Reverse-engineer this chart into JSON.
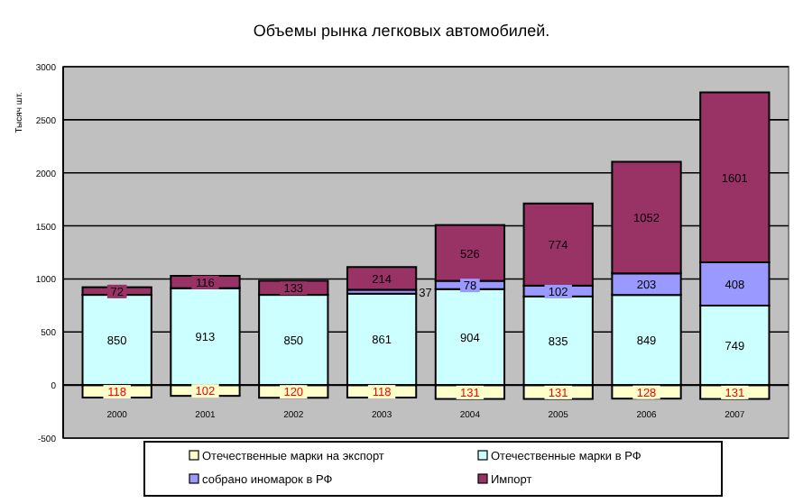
{
  "chart_data": {
    "type": "bar",
    "stacked": true,
    "title": "Объемы рынка легковых автомобилей.",
    "ylabel": "Тысяч шт.",
    "categories": [
      "2000",
      "2001",
      "2002",
      "2003",
      "2004",
      "2005",
      "2006",
      "2007"
    ],
    "series": [
      {
        "name": "Отечественные марки на экспорт",
        "color": "#ffffcc",
        "values": [
          118,
          102,
          120,
          118,
          131,
          131,
          128,
          131
        ],
        "base": [
          -118,
          -102,
          -120,
          -118,
          -131,
          -131,
          -128,
          -131
        ]
      },
      {
        "name": "Отечественные марки в РФ",
        "color": "#ccffff",
        "values": [
          850,
          913,
          850,
          861,
          904,
          835,
          849,
          749
        ]
      },
      {
        "name": "собрано иномарок в РФ",
        "color": "#9999ff",
        "values": [
          null,
          null,
          null,
          37,
          78,
          102,
          203,
          408
        ]
      },
      {
        "name": "Импорт",
        "color": "#993366",
        "values": [
          72,
          116,
          133,
          214,
          526,
          774,
          1052,
          1601
        ]
      }
    ],
    "data_labels": true,
    "ylim": [
      -500,
      3000
    ],
    "yticks": [
      -500,
      0,
      500,
      1000,
      1500,
      2000,
      2500,
      3000
    ],
    "grid": "y",
    "legend": "bottom"
  }
}
